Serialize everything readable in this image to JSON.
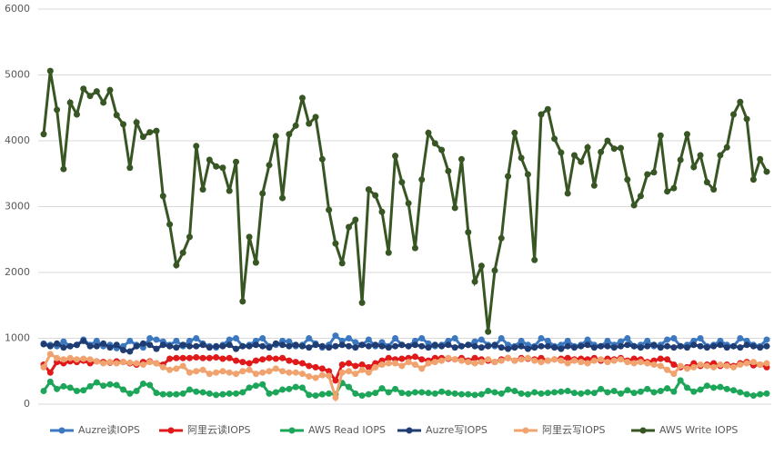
{
  "chart_data": {
    "type": "line",
    "ylim": [
      0,
      6000
    ],
    "yticks": [
      0,
      1000,
      2000,
      3000,
      4000,
      5000,
      6000
    ],
    "grid": true,
    "legend": "bottom",
    "series": [
      {
        "name": "Auzre读IOPS",
        "color": "#3b78c0",
        "values": [
          920,
          900,
          880,
          950,
          880,
          900,
          980,
          900,
          960,
          880,
          900,
          850,
          880,
          960,
          900,
          860,
          1000,
          980,
          950,
          900,
          960,
          880,
          960,
          1000,
          920,
          880,
          860,
          900,
          980,
          1000,
          880,
          900,
          960,
          1000,
          880,
          900,
          960,
          950,
          880,
          900,
          1000,
          920,
          860,
          900,
          1040,
          960,
          1000,
          940,
          900,
          980,
          880,
          940,
          880,
          1000,
          900,
          880,
          960,
          1000,
          920,
          880,
          900,
          960,
          1000,
          880,
          900,
          950,
          980,
          900,
          880,
          1000,
          900,
          880,
          960,
          900,
          880,
          1000,
          960,
          880,
          900,
          960,
          880,
          900,
          980,
          900,
          880,
          960,
          900,
          950,
          1000,
          880,
          900,
          960,
          880,
          900,
          980,
          1000,
          880,
          900,
          960,
          1000,
          880,
          900,
          960,
          900,
          880,
          1000,
          960,
          900,
          880,
          980
        ]
      },
      {
        "name": "阿里云读IOPS",
        "color": "#e0191b",
        "values": [
          600,
          480,
          640,
          620,
          650,
          640,
          660,
          620,
          650,
          640,
          630,
          650,
          640,
          620,
          600,
          640,
          650,
          620,
          600,
          690,
          700,
          700,
          700,
          710,
          700,
          700,
          710,
          690,
          700,
          660,
          640,
          620,
          660,
          680,
          700,
          690,
          700,
          660,
          640,
          620,
          580,
          560,
          540,
          500,
          360,
          600,
          620,
          580,
          600,
          560,
          620,
          660,
          700,
          680,
          690,
          700,
          720,
          680,
          660,
          700,
          700,
          690,
          680,
          700,
          660,
          700,
          680,
          660,
          640,
          680,
          700,
          660,
          700,
          690,
          680,
          700,
          660,
          680,
          690,
          700,
          680,
          690,
          680,
          700,
          660,
          690,
          680,
          700,
          660,
          690,
          680,
          640,
          660,
          690,
          680,
          600,
          560,
          560,
          620,
          580,
          600,
          620,
          580,
          600,
          580,
          620,
          640,
          590,
          600,
          560
        ]
      },
      {
        "name": "AWS Read IOPS",
        "color": "#1da65a",
        "values": [
          200,
          340,
          230,
          270,
          250,
          200,
          210,
          270,
          330,
          280,
          300,
          290,
          220,
          160,
          200,
          310,
          290,
          170,
          150,
          150,
          150,
          160,
          220,
          190,
          180,
          160,
          140,
          150,
          160,
          160,
          180,
          250,
          280,
          300,
          160,
          180,
          220,
          230,
          260,
          250,
          140,
          130,
          150,
          160,
          150,
          320,
          260,
          160,
          130,
          150,
          170,
          240,
          180,
          230,
          170,
          160,
          180,
          180,
          170,
          160,
          190,
          170,
          160,
          150,
          150,
          140,
          150,
          200,
          180,
          160,
          220,
          200,
          160,
          150,
          180,
          160,
          170,
          180,
          190,
          200,
          170,
          160,
          180,
          170,
          230,
          180,
          200,
          160,
          210,
          170,
          190,
          230,
          180,
          200,
          240,
          190,
          360,
          250,
          190,
          220,
          280,
          250,
          260,
          230,
          210,
          180,
          150,
          130,
          150,
          160
        ]
      },
      {
        "name": "Auzre写IOPS",
        "color": "#1f3d72",
        "values": [
          910,
          880,
          920,
          860,
          880,
          900,
          960,
          880,
          880,
          920,
          860,
          900,
          820,
          800,
          880,
          920,
          900,
          840,
          900,
          880,
          860,
          900,
          880,
          880,
          900,
          860,
          880,
          880,
          900,
          840,
          880,
          880,
          900,
          880,
          860,
          920,
          900,
          880,
          900,
          880,
          860,
          900,
          880,
          860,
          880,
          900,
          880,
          860,
          900,
          880,
          900,
          880,
          860,
          880,
          900,
          880,
          900,
          880,
          860,
          900,
          880,
          900,
          860,
          880,
          900,
          880,
          860,
          880,
          900,
          860,
          840,
          860,
          880,
          840,
          860,
          880,
          880,
          860,
          840,
          880,
          860,
          880,
          900,
          860,
          880,
          880,
          860,
          880,
          900,
          880,
          860,
          880,
          900,
          860,
          880,
          860,
          880,
          860,
          900,
          880,
          860,
          880,
          900,
          860,
          880,
          860,
          900,
          880,
          860,
          880
        ]
      },
      {
        "name": "阿里云写IOPS",
        "color": "#f0a36e",
        "values": [
          560,
          760,
          700,
          680,
          700,
          680,
          690,
          680,
          650,
          620,
          640,
          620,
          640,
          630,
          620,
          600,
          640,
          620,
          560,
          520,
          540,
          580,
          480,
          500,
          520,
          460,
          480,
          500,
          480,
          460,
          500,
          520,
          460,
          480,
          500,
          540,
          500,
          480,
          480,
          460,
          420,
          400,
          440,
          430,
          100,
          480,
          500,
          460,
          520,
          480,
          560,
          600,
          620,
          620,
          580,
          640,
          600,
          540,
          620,
          640,
          660,
          700,
          680,
          660,
          640,
          620,
          640,
          680,
          640,
          660,
          700,
          660,
          680,
          700,
          660,
          640,
          660,
          680,
          660,
          620,
          660,
          640,
          620,
          660,
          680,
          640,
          660,
          680,
          640,
          620,
          640,
          620,
          600,
          580,
          520,
          460,
          580,
          540,
          560,
          600,
          580,
          560,
          600,
          580,
          560,
          600,
          620,
          640,
          600,
          620
        ]
      },
      {
        "name": "AWS Write IOPS",
        "color": "#375623",
        "values": [
          4100,
          5060,
          4470,
          3570,
          4580,
          4400,
          4790,
          4680,
          4750,
          4580,
          4770,
          4390,
          4250,
          3590,
          4280,
          4060,
          4130,
          4150,
          3160,
          2730,
          2110,
          2300,
          2540,
          3920,
          3260,
          3710,
          3610,
          3590,
          3240,
          3680,
          1560,
          2540,
          2150,
          3200,
          3630,
          4070,
          3130,
          4100,
          4230,
          4650,
          4260,
          4360,
          3720,
          2950,
          2440,
          2140,
          2690,
          2800,
          1540,
          3260,
          3170,
          2920,
          2300,
          3770,
          3370,
          3050,
          2370,
          3410,
          4120,
          3960,
          3860,
          3540,
          2980,
          3720,
          2610,
          1860,
          2100,
          1100,
          2030,
          2520,
          3460,
          4120,
          3740,
          3490,
          2190,
          4400,
          4480,
          4030,
          3820,
          3200,
          3780,
          3680,
          3900,
          3320,
          3830,
          4000,
          3880,
          3890,
          3410,
          3020,
          3160,
          3490,
          3520,
          4080,
          3230,
          3280,
          3710,
          4100,
          3600,
          3780,
          3370,
          3260,
          3780,
          3900,
          4400,
          4590,
          4330,
          3410,
          3720,
          3530
        ]
      }
    ]
  }
}
